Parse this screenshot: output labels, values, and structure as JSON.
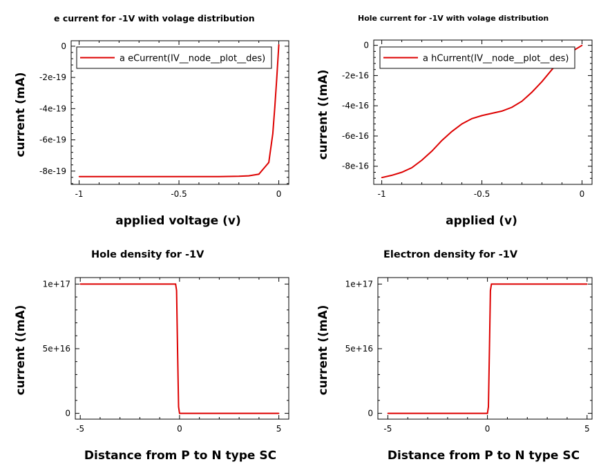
{
  "page": {
    "background": "#ffffff"
  },
  "chart_data": [
    {
      "id": "p1",
      "type": "line",
      "title": "e current for -1V with volage distribution",
      "xlabel": "applied voltage (v)",
      "ylabel": "current (mA)",
      "xlim": [
        -1.04,
        0.05
      ],
      "ylim": [
        -8.85e-19,
        3.5e-20
      ],
      "xticks": [
        -1,
        -0.5,
        0
      ],
      "xtick_labels": [
        "-1",
        "-0.5",
        "0"
      ],
      "yticks": [
        0,
        -2e-19,
        -4e-19,
        -6e-19,
        -8e-19
      ],
      "ytick_labels": [
        "0",
        "-2e-19",
        "-4e-19",
        "-6e-19",
        "-8e-19"
      ],
      "legend_position": "top",
      "grid": false,
      "series": [
        {
          "name": "a eCurrent(IV__node__plot__des)",
          "color": "#dd0000",
          "x": [
            -1,
            -0.9,
            -0.8,
            -0.7,
            -0.6,
            -0.5,
            -0.4,
            -0.3,
            -0.2,
            -0.15,
            -0.1,
            -0.05,
            -0.03,
            -0.02,
            -0.01,
            0
          ],
          "y": [
            -8.35e-19,
            -8.35e-19,
            -8.35e-19,
            -8.35e-19,
            -8.35e-19,
            -8.35e-19,
            -8.35e-19,
            -8.35e-19,
            -8.33e-19,
            -8.3e-19,
            -8.2e-19,
            -7.45e-19,
            -5.6e-19,
            -3.9e-19,
            -2e-19,
            1e-20
          ]
        }
      ]
    },
    {
      "id": "p2",
      "type": "line",
      "title": "Hole current for -1V with volage distribution",
      "xlabel": "applied (v)",
      "ylabel": "current ((mA)",
      "xlim": [
        -1.04,
        0.05
      ],
      "ylim": [
        -9.2e-16,
        3.5e-17
      ],
      "xticks": [
        -1,
        -0.5,
        0
      ],
      "xtick_labels": [
        "-1",
        "-0.5",
        "0"
      ],
      "yticks": [
        0,
        -2e-16,
        -4e-16,
        -6e-16,
        -8e-16
      ],
      "ytick_labels": [
        "0",
        "-2e-16",
        "-4e-16",
        "-6e-16",
        "-8e-16"
      ],
      "legend_position": "top",
      "grid": false,
      "series": [
        {
          "name": "a hCurrent(IV__node__plot__des)",
          "color": "#dd0000",
          "x": [
            -1,
            -0.95,
            -0.9,
            -0.85,
            -0.8,
            -0.75,
            -0.7,
            -0.65,
            -0.6,
            -0.55,
            -0.5,
            -0.45,
            -0.4,
            -0.35,
            -0.3,
            -0.25,
            -0.2,
            -0.15,
            -0.1,
            -0.05,
            0
          ],
          "y": [
            -8.75e-16,
            -8.6e-16,
            -8.4e-16,
            -8.1e-16,
            -7.6e-16,
            -7e-16,
            -6.3e-16,
            -5.7e-16,
            -5.2e-16,
            -4.85e-16,
            -4.65e-16,
            -4.5e-16,
            -4.35e-16,
            -4.1e-16,
            -3.7e-16,
            -3.1e-16,
            -2.4e-16,
            -1.6e-16,
            -9e-17,
            -4e-17,
            0
          ]
        }
      ]
    },
    {
      "id": "p3",
      "type": "line",
      "title": "Hole density for -1V",
      "xlabel": "Distance from P to N type SC",
      "ylabel": "current ((mA)",
      "xlim": [
        -5.25,
        5.5
      ],
      "ylim": [
        -4500000000000000.0,
        1.05e+17
      ],
      "xticks": [
        -5,
        0,
        5
      ],
      "xtick_labels": [
        "-5",
        "0",
        "5"
      ],
      "yticks": [
        0,
        5e+16,
        1e+17
      ],
      "ytick_labels": [
        "0",
        "5e+16",
        "1e+17"
      ],
      "grid": false,
      "series": [
        {
          "name": "",
          "color": "#dd0000",
          "x": [
            -5,
            -0.2,
            -0.15,
            -0.1,
            -0.05,
            0,
            5
          ],
          "y": [
            1e+17,
            1e+17,
            9.5e+16,
            5e+16,
            5000000000000000.0,
            0,
            0
          ]
        }
      ]
    },
    {
      "id": "p4",
      "type": "line",
      "title": "Electron density for -1V",
      "xlabel": "Distance from P to N type SC",
      "ylabel": "current ((mA)",
      "xlim": [
        -5.5,
        5.25
      ],
      "ylim": [
        -4500000000000000.0,
        1.05e+17
      ],
      "xticks": [
        -5,
        0,
        5
      ],
      "xtick_labels": [
        "-5",
        "0",
        "5"
      ],
      "yticks": [
        0,
        5e+16,
        1e+17
      ],
      "ytick_labels": [
        "0",
        "5e+16",
        "1e+17"
      ],
      "grid": false,
      "series": [
        {
          "name": "",
          "color": "#dd0000",
          "x": [
            -5,
            0,
            0.05,
            0.1,
            0.15,
            0.2,
            5
          ],
          "y": [
            0,
            0,
            5000000000000000.0,
            5e+16,
            9.5e+16,
            1e+17,
            1e+17
          ]
        }
      ]
    }
  ]
}
